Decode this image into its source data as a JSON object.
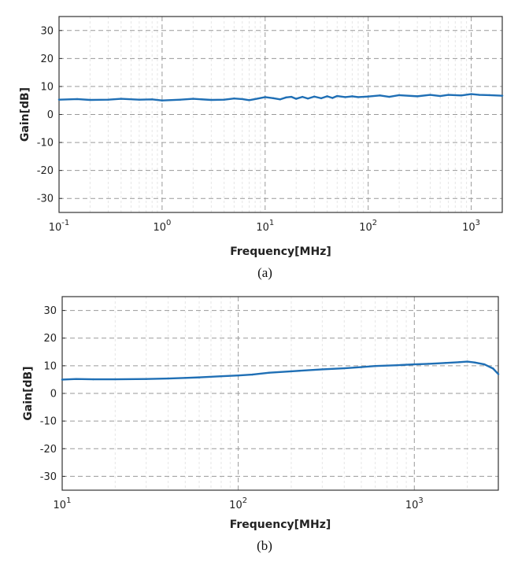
{
  "chart_data": [
    {
      "type": "line",
      "caption": "(a)",
      "xlabel": "Frequency[MHz]",
      "ylabel": "Gain[dB]",
      "xscale": "log",
      "xlim": [
        0.1,
        2000
      ],
      "ylim": [
        -35,
        35
      ],
      "yticks": [
        -30,
        -20,
        -10,
        0,
        10,
        20,
        30
      ],
      "xtick_labels": [
        {
          "base": "10",
          "exp": "-1"
        },
        {
          "base": "10",
          "exp": "0"
        },
        {
          "base": "10",
          "exp": "1"
        },
        {
          "base": "10",
          "exp": "2"
        },
        {
          "base": "10",
          "exp": "3"
        }
      ],
      "grid": true,
      "line_color": "#1f6fb5",
      "series": [
        {
          "x": [
            0.1,
            0.15,
            0.2,
            0.3,
            0.4,
            0.6,
            0.8,
            1,
            1.5,
            2,
            3,
            4,
            5,
            6,
            7,
            8,
            10,
            12,
            14,
            16,
            18,
            20,
            23,
            26,
            30,
            35,
            40,
            45,
            50,
            60,
            70,
            80,
            100,
            130,
            160,
            200,
            300,
            400,
            500,
            600,
            800,
            1000,
            1200,
            1500,
            2000
          ],
          "y": [
            5.3,
            5.5,
            5.2,
            5.3,
            5.6,
            5.3,
            5.4,
            5.0,
            5.3,
            5.6,
            5.2,
            5.3,
            5.7,
            5.5,
            5.1,
            5.5,
            6.2,
            5.8,
            5.4,
            6.1,
            6.3,
            5.6,
            6.3,
            5.7,
            6.4,
            5.8,
            6.5,
            5.9,
            6.6,
            6.2,
            6.5,
            6.2,
            6.4,
            6.8,
            6.3,
            6.9,
            6.5,
            7.0,
            6.6,
            7.0,
            6.8,
            7.3,
            7.0,
            6.9,
            6.7
          ]
        }
      ]
    },
    {
      "type": "line",
      "caption": "(b)",
      "xlabel": "Frequency[MHz]",
      "ylabel": "Gain[dB]",
      "xscale": "log",
      "xlim": [
        10,
        3000
      ],
      "ylim": [
        -35,
        35
      ],
      "yticks": [
        -30,
        -20,
        -10,
        0,
        10,
        20,
        30
      ],
      "xtick_labels": [
        {
          "base": "10",
          "exp": "1"
        },
        {
          "base": "10",
          "exp": "2"
        },
        {
          "base": "10",
          "exp": "3"
        }
      ],
      "grid": true,
      "line_color": "#1f6fb5",
      "series": [
        {
          "x": [
            10,
            12,
            15,
            20,
            30,
            40,
            50,
            60,
            80,
            100,
            120,
            150,
            200,
            300,
            400,
            500,
            600,
            800,
            1000,
            1200,
            1500,
            1800,
            2000,
            2200,
            2500,
            2800,
            3000
          ],
          "y": [
            5.0,
            5.2,
            5.1,
            5.1,
            5.2,
            5.4,
            5.6,
            5.8,
            6.2,
            6.5,
            6.8,
            7.5,
            8.0,
            8.7,
            9.1,
            9.5,
            9.9,
            10.2,
            10.5,
            10.7,
            11.0,
            11.3,
            11.5,
            11.2,
            10.5,
            9.0,
            7.0
          ]
        }
      ]
    }
  ]
}
